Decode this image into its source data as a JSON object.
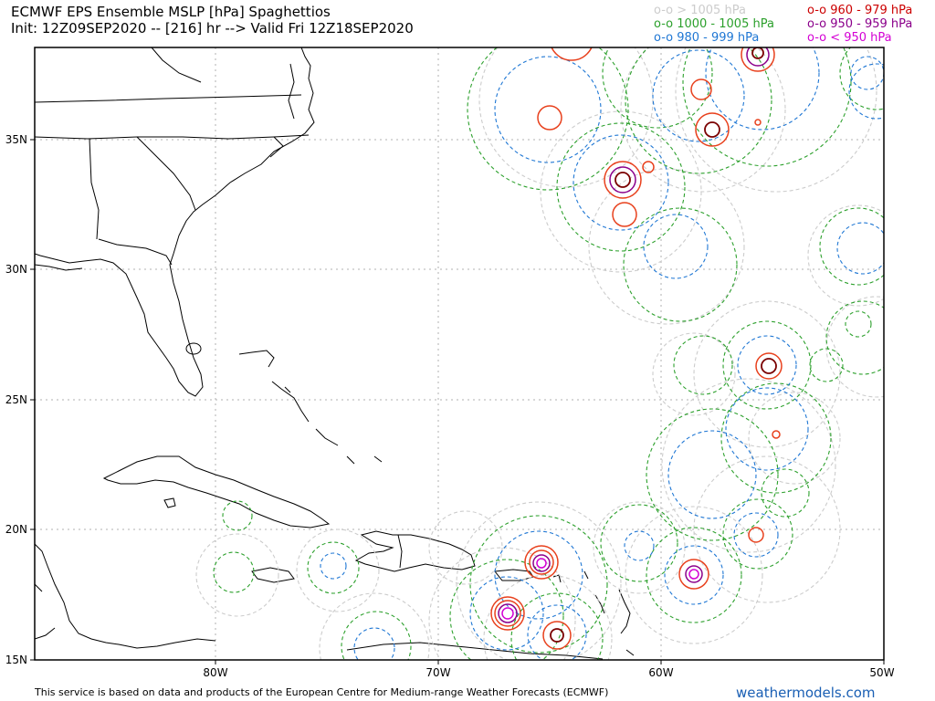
{
  "header": {
    "title": "ECMWF EPS Ensemble MSLP [hPa] Spaghettios",
    "subtitle": "Init: 12Z09SEP2020 -- [216] hr --> Valid Fri 12Z18SEP2020"
  },
  "legend": {
    "col1": [
      {
        "label": "o-o > 1005 hPa",
        "color": "#cccccc"
      },
      {
        "label": "o-o 1000 - 1005 hPa",
        "color": "#2ca02c"
      },
      {
        "label": "o-o 980 - 999 hPa",
        "color": "#1f77d4"
      }
    ],
    "col2": [
      {
        "label": "o-o 960 - 979 hPa",
        "color": "#cc0000"
      },
      {
        "label": "o-o 950 - 959 hPa",
        "color": "#8b008b"
      },
      {
        "label": "o-o < 950 hPa",
        "color": "#d400d4"
      }
    ]
  },
  "map": {
    "lat_labels": [
      "35N",
      "30N",
      "25N",
      "20N",
      "15N"
    ],
    "lon_labels": [
      "80W",
      "70W",
      "60W",
      "50W"
    ],
    "colors": {
      "gray": "#cccccc",
      "green": "#2ca02c",
      "blue": "#1f77d4",
      "red": "#e8401c",
      "darkred": "#7a0000",
      "purple": "#8b008b",
      "magenta": "#d400d4"
    }
  },
  "footer": {
    "attribution": "This service is based on data and products of the European Centre for Medium-range Weather Forecasts (ECMWF)",
    "brand": "weathermodels.com"
  }
}
